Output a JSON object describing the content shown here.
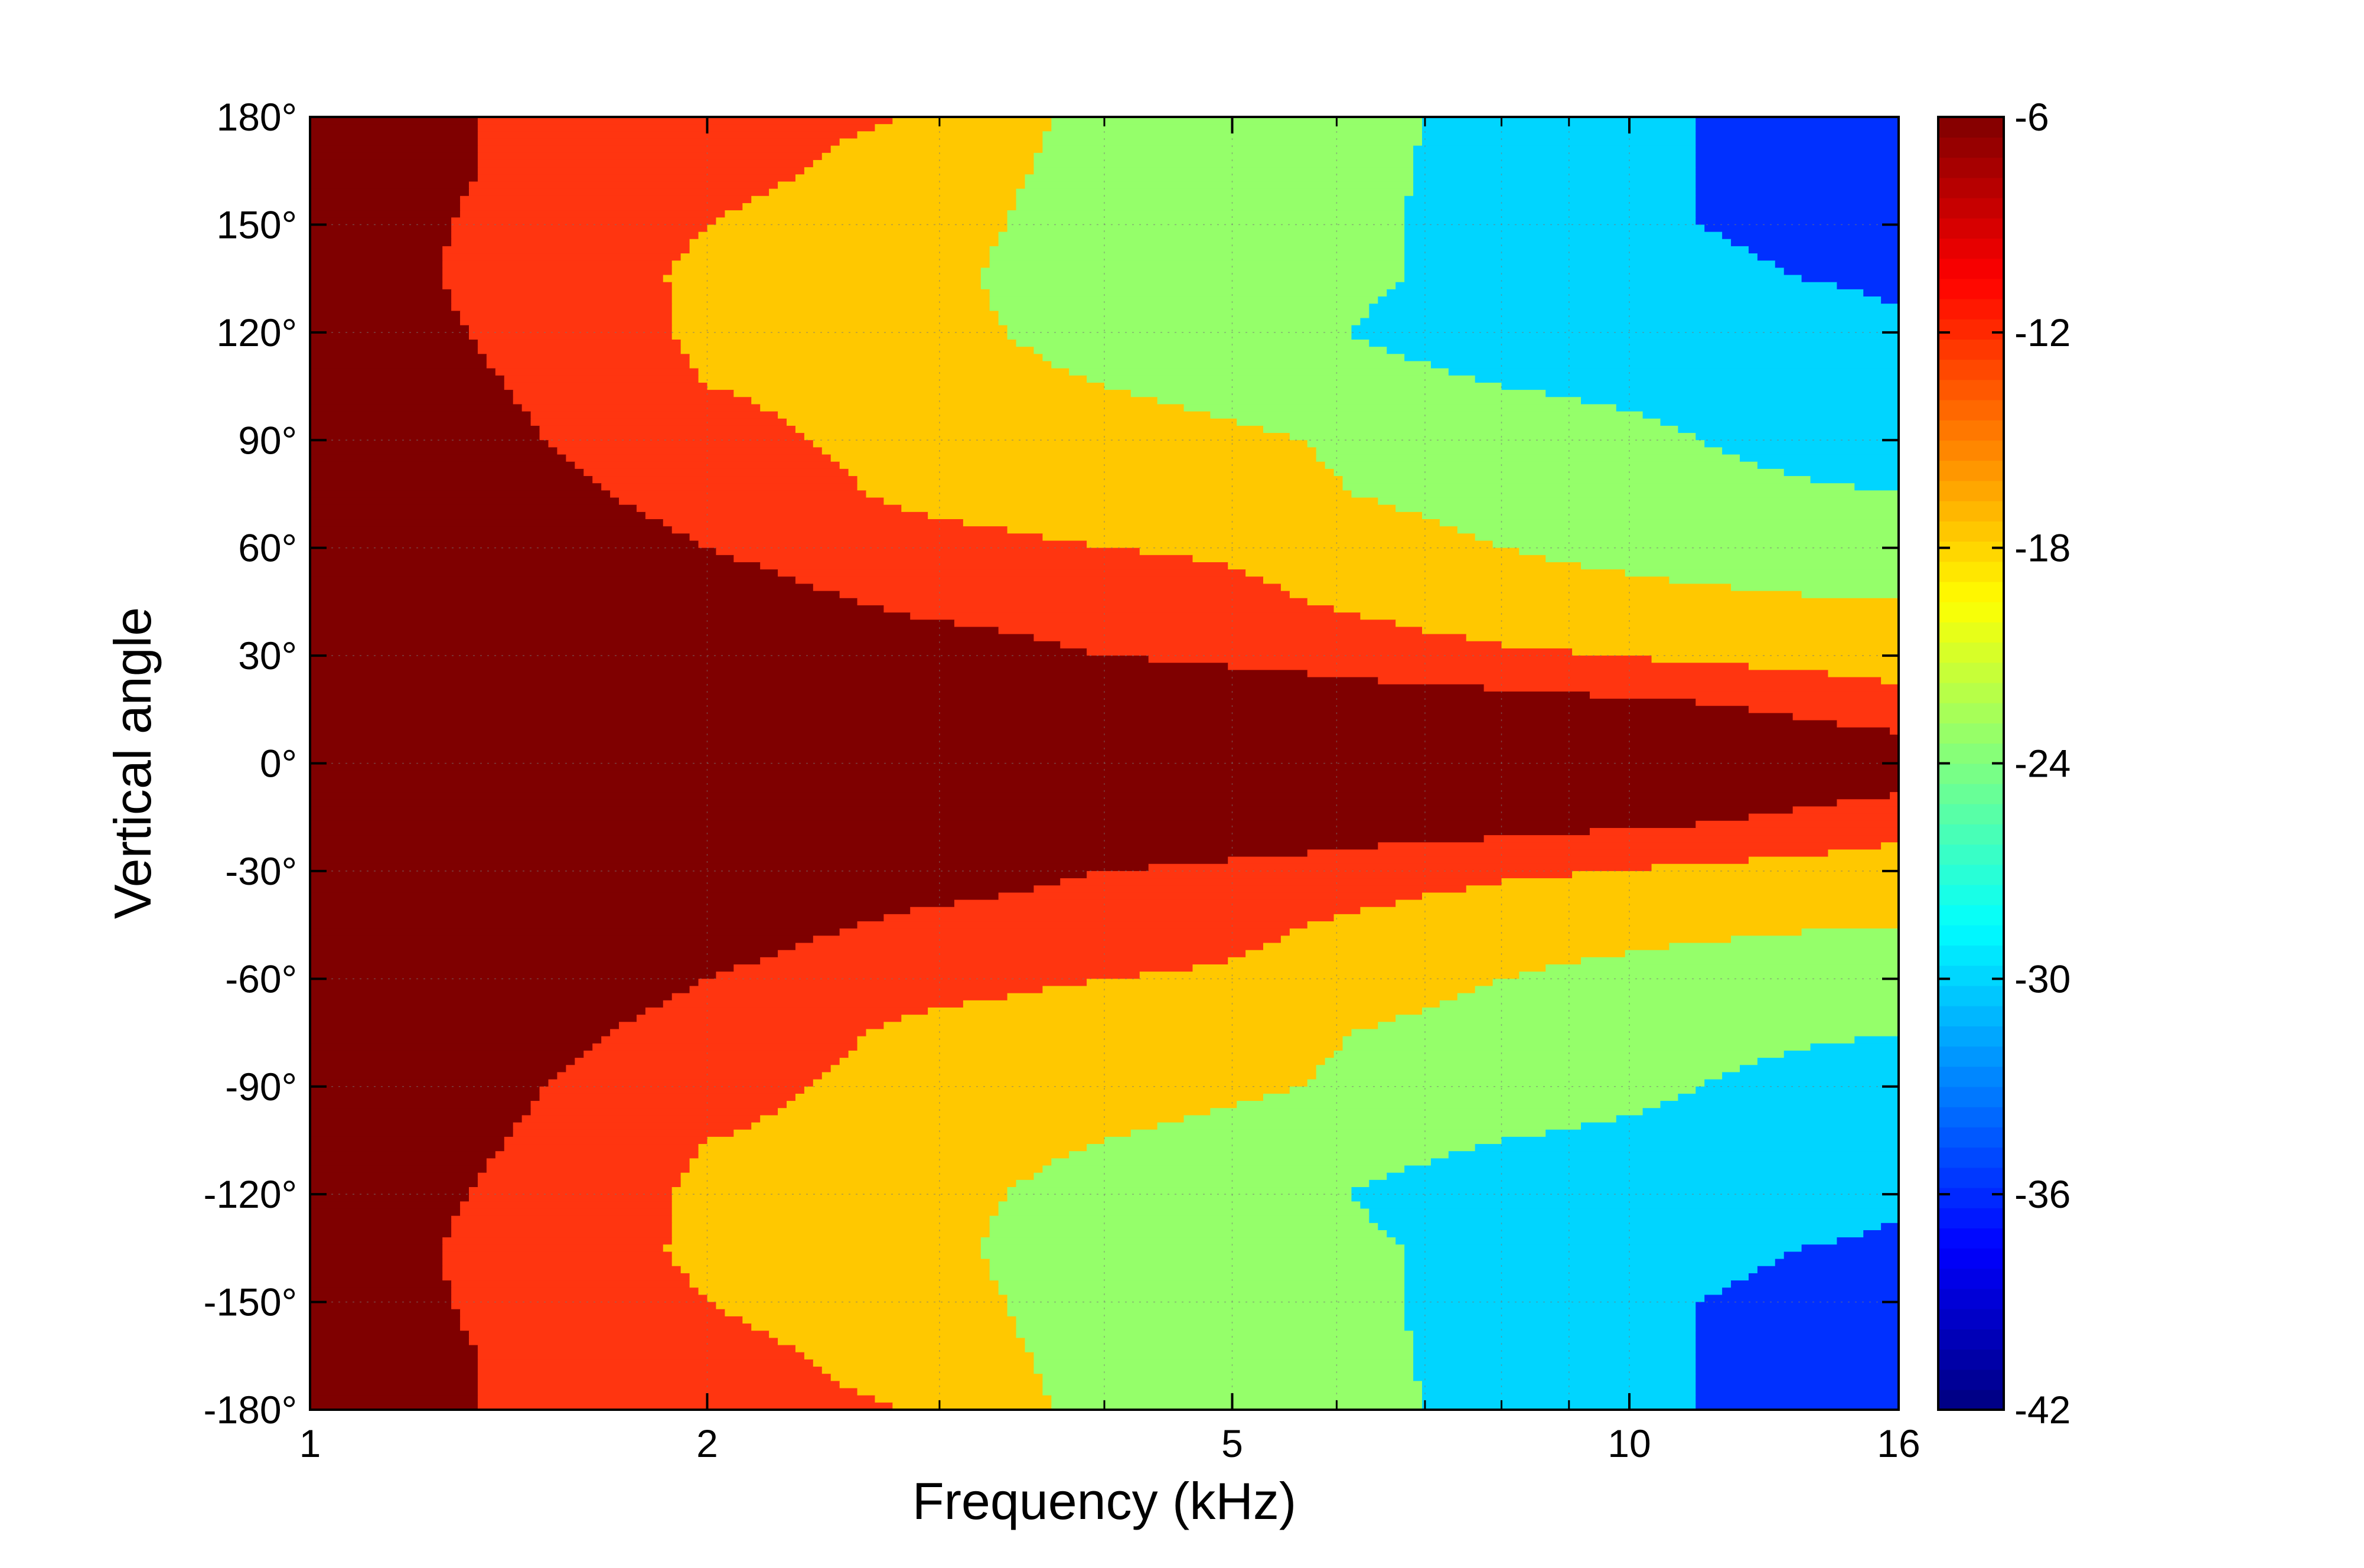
{
  "chart_data": {
    "type": "heatmap",
    "style": "filled-contour",
    "title": "",
    "xlabel": "Frequency (kHz)",
    "ylabel": "Vertical angle",
    "x_scale": "log",
    "xlim": [
      1,
      16
    ],
    "ylim": [
      -180,
      180
    ],
    "x_ticks": [
      1,
      2,
      5,
      10,
      16
    ],
    "x_tick_labels": [
      "1",
      "2",
      "5",
      "10",
      "16"
    ],
    "y_ticks": [
      180,
      150,
      120,
      90,
      60,
      30,
      0,
      -30,
      -60,
      -90,
      -120,
      -150,
      -180
    ],
    "y_tick_labels": [
      "180°",
      "150°",
      "120°",
      "90°",
      "60°",
      "30°",
      "0°",
      "-30°",
      "-60°",
      "-90°",
      "-120°",
      "-150°",
      "-180°"
    ],
    "grid": true,
    "colormap": "jet",
    "colorbar": {
      "range": [
        -42,
        -6
      ],
      "ticks": [
        -6,
        -12,
        -18,
        -24,
        -30,
        -36,
        -42
      ],
      "tick_labels": [
        "-6",
        "-12",
        "-18",
        "-24",
        "-30",
        "-36",
        "-42"
      ]
    },
    "contour_levels": [
      -42,
      -36,
      -30,
      -24,
      -18,
      -12,
      -6
    ],
    "band_colors": {
      "-6": "#7f0000",
      "-12": "#ff3510",
      "-18": "#ffc800",
      "-24": "#95ff6a",
      "-30": "#00d5ff",
      "-36": "#0030ff",
      "-42": "#000090"
    },
    "x": [
      1,
      1.41,
      2,
      2.83,
      4,
      5.66,
      8,
      11.3,
      16
    ],
    "y": [
      0,
      15,
      30,
      45,
      60,
      75,
      90,
      105,
      120,
      135,
      150,
      165,
      180
    ],
    "z_note_symmetric_in_angle": true,
    "z": [
      [
        -3,
        -3,
        -3,
        -3,
        -3,
        -4,
        -5,
        -6,
        -8
      ],
      [
        -3,
        -3,
        -4,
        -5,
        -6,
        -8,
        -9,
        -11,
        -15
      ],
      [
        -4,
        -5,
        -6,
        -9,
        -12,
        -14,
        -17,
        -19,
        -21
      ],
      [
        -5,
        -6,
        -9,
        -13,
        -15,
        -18,
        -22,
        -23,
        -24
      ],
      [
        -5,
        -8,
        -12,
        -16,
        -18,
        -19,
        -24,
        -26,
        -28
      ],
      [
        -6,
        -10,
        -14,
        -19,
        -21,
        -23,
        -27,
        -29,
        -30
      ],
      [
        -7,
        -11,
        -16,
        -20,
        -22,
        -24,
        -28,
        -30,
        -32
      ],
      [
        -8,
        -12,
        -18,
        -20,
        -24,
        -26,
        -30,
        -31,
        -33
      ],
      [
        -8,
        -13,
        -19,
        -21,
        -27,
        -29,
        -34,
        -31,
        -35
      ],
      [
        -8,
        -14,
        -19,
        -21,
        -29,
        -27,
        -33,
        -35,
        -37
      ],
      [
        -7,
        -14,
        -18,
        -20,
        -28,
        -26,
        -34,
        -36,
        -38
      ],
      [
        -6,
        -13,
        -17,
        -19,
        -27,
        -25,
        -34,
        -36,
        -39
      ],
      [
        -6,
        -13,
        -17,
        -18,
        -26,
        -24,
        -34,
        -36,
        -40
      ]
    ]
  }
}
